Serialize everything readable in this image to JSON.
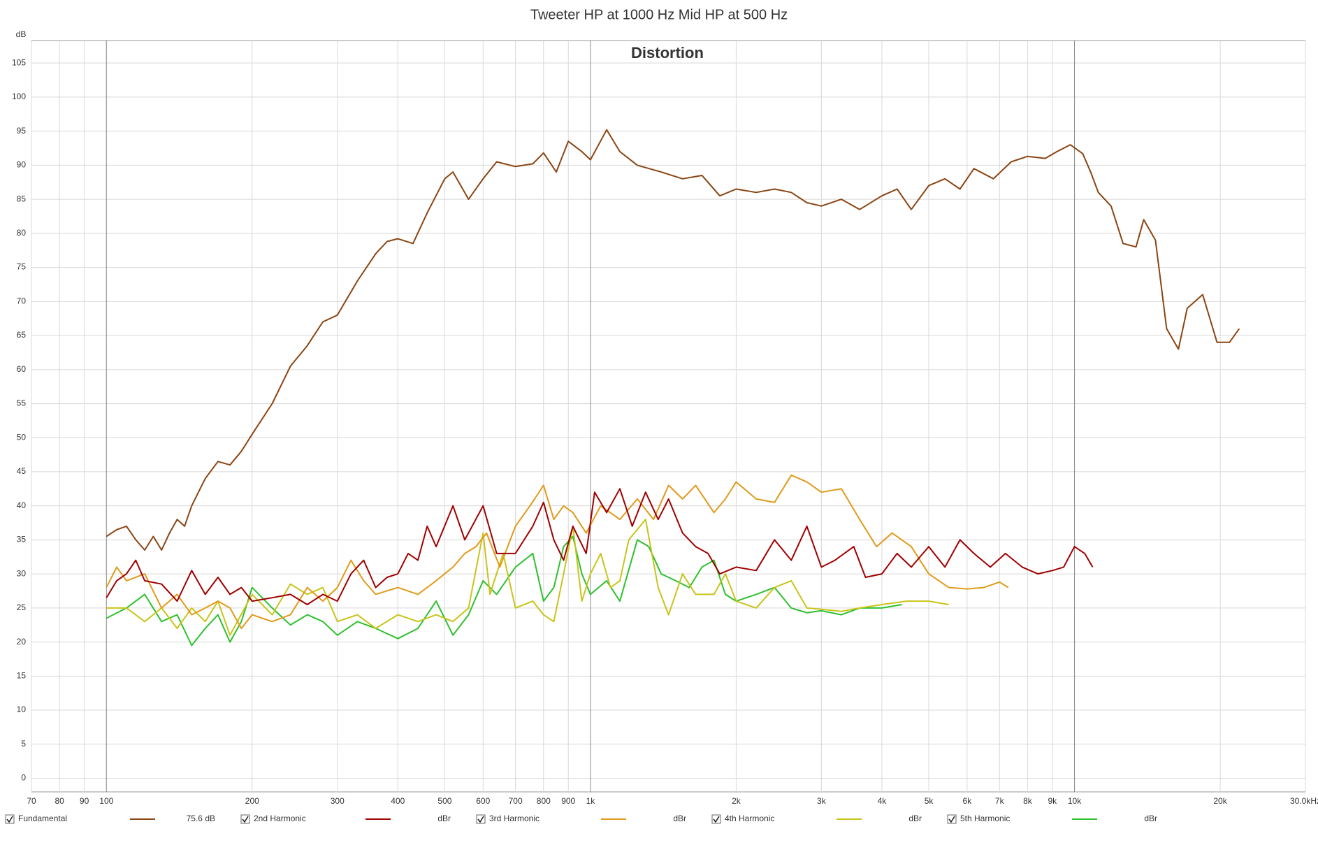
{
  "chart_data": {
    "type": "line",
    "title": "Tweeter HP at 1000 Hz Mid HP at 500 Hz",
    "subtitle": "Distortion",
    "y_axis_label": "dB",
    "x_scale": "log",
    "grid": true,
    "legend_position": "bottom",
    "xlim": [
      70,
      30000
    ],
    "ylim": [
      -2,
      108.3
    ],
    "xticks": [
      70,
      80,
      90,
      100,
      200,
      300,
      400,
      500,
      600,
      700,
      800,
      900,
      {
        "value": 1000,
        "label": "1k"
      },
      {
        "value": 2000,
        "label": "2k"
      },
      {
        "value": 3000,
        "label": "3k"
      },
      {
        "value": 4000,
        "label": "4k"
      },
      {
        "value": 5000,
        "label": "5k"
      },
      {
        "value": 6000,
        "label": "6k"
      },
      {
        "value": 7000,
        "label": "7k"
      },
      {
        "value": 8000,
        "label": "8k"
      },
      {
        "value": 9000,
        "label": "9k"
      },
      {
        "value": 10000,
        "label": "10k"
      },
      {
        "value": 20000,
        "label": "20k"
      },
      {
        "value": 30000,
        "label": "30.0kHz"
      }
    ],
    "yticks": [
      0,
      5,
      10,
      15,
      20,
      25,
      30,
      35,
      40,
      45,
      50,
      55,
      60,
      65,
      70,
      75,
      80,
      85,
      90,
      95,
      100,
      105
    ],
    "series": [
      {
        "name": "Fundamental",
        "legend_value": "75.6 dB",
        "color": "#8b4513",
        "x": [
          100,
          105,
          110,
          115,
          120,
          125,
          130,
          135,
          140,
          145,
          150,
          160,
          170,
          180,
          190,
          200,
          220,
          240,
          260,
          280,
          300,
          330,
          360,
          380,
          400,
          430,
          460,
          500,
          520,
          560,
          600,
          640,
          700,
          760,
          800,
          850,
          900,
          960,
          1000,
          1080,
          1150,
          1250,
          1400,
          1550,
          1700,
          1850,
          2000,
          2200,
          2400,
          2600,
          2800,
          3000,
          3300,
          3600,
          4000,
          4300,
          4600,
          5000,
          5400,
          5800,
          6200,
          6800,
          7400,
          8000,
          8700,
          9200,
          9800,
          10400,
          10800,
          11200,
          11900,
          12600,
          13400,
          13900,
          14700,
          15500,
          16400,
          17100,
          18400,
          19700,
          20900,
          21900
        ],
        "values": [
          35.5,
          36.5,
          37,
          35,
          33.5,
          35.5,
          33.5,
          36,
          38,
          37,
          40,
          44,
          46.5,
          46,
          48,
          50.5,
          55,
          60.5,
          63.5,
          67,
          68,
          73,
          77,
          78.8,
          79.2,
          78.5,
          83,
          88,
          89,
          85,
          88,
          90.5,
          89.8,
          90.2,
          91.8,
          89,
          93.5,
          92,
          90.8,
          95.2,
          92,
          90,
          89,
          88,
          88.5,
          85.5,
          86.5,
          86,
          86.5,
          86,
          84.5,
          84,
          85,
          83.5,
          85.5,
          86.5,
          83.5,
          87,
          88,
          86.5,
          89.5,
          88,
          90.5,
          91.3,
          91,
          92,
          93,
          91.7,
          89,
          86,
          84,
          78.5,
          78,
          82,
          79,
          66,
          63,
          69,
          71,
          64,
          64,
          66
        ]
      },
      {
        "name": "2nd Harmonic",
        "legend_value": "dBr",
        "color": "#a00000",
        "x": [
          100,
          105,
          110,
          115,
          120,
          130,
          140,
          150,
          160,
          170,
          180,
          190,
          200,
          220,
          240,
          260,
          280,
          300,
          320,
          340,
          360,
          380,
          400,
          420,
          440,
          460,
          480,
          520,
          550,
          600,
          640,
          700,
          760,
          800,
          840,
          880,
          920,
          980,
          1020,
          1080,
          1150,
          1220,
          1300,
          1380,
          1450,
          1550,
          1650,
          1750,
          1850,
          2000,
          2200,
          2400,
          2600,
          2800,
          3000,
          3200,
          3500,
          3700,
          4000,
          4300,
          4600,
          5000,
          5400,
          5800,
          6200,
          6700,
          7200,
          7800,
          8400,
          9000,
          9500,
          10000,
          10500,
          10900
        ],
        "values": [
          26.5,
          29,
          30,
          32,
          29,
          28.5,
          26,
          30.5,
          27,
          29.5,
          27,
          28,
          26,
          26.5,
          27,
          25.5,
          27,
          26,
          30,
          32,
          28,
          29.5,
          30,
          33,
          32,
          37,
          34,
          40,
          35,
          40,
          33,
          33,
          37,
          40.5,
          35,
          32,
          37,
          33,
          42,
          39,
          42.5,
          37,
          42,
          38,
          41,
          36,
          34,
          33,
          30,
          31,
          30.5,
          35,
          32,
          37,
          31,
          32,
          34,
          29.5,
          30,
          33,
          31,
          34,
          31,
          35,
          33,
          31,
          33,
          31,
          30,
          30.5,
          31,
          34,
          33,
          31
        ]
      },
      {
        "name": "3rd Harmonic",
        "legend_value": "dBr",
        "color": "#e09a1a",
        "x": [
          100,
          105,
          110,
          120,
          130,
          140,
          150,
          160,
          170,
          180,
          190,
          200,
          220,
          240,
          260,
          280,
          300,
          320,
          340,
          360,
          400,
          440,
          480,
          520,
          550,
          580,
          610,
          650,
          700,
          750,
          800,
          840,
          880,
          920,
          980,
          1050,
          1150,
          1250,
          1350,
          1450,
          1550,
          1650,
          1800,
          1900,
          2000,
          2200,
          2400,
          2600,
          2800,
          3000,
          3300,
          3600,
          3900,
          4200,
          4600,
          5000,
          5500,
          6000,
          6500,
          7000,
          7300
        ],
        "values": [
          28,
          31,
          29,
          30,
          25,
          27,
          24,
          25,
          26,
          25,
          22,
          24,
          23,
          24,
          28,
          26,
          28,
          32,
          29,
          27,
          28,
          27,
          29,
          31,
          33,
          34,
          36,
          31,
          37,
          40,
          43,
          38,
          40,
          39,
          36,
          40,
          38,
          41,
          38,
          43,
          41,
          43,
          39,
          41,
          43.5,
          41,
          40.5,
          44.5,
          43.5,
          42,
          42.5,
          38,
          34,
          36,
          34,
          30,
          28,
          27.8,
          28,
          28.8,
          28
        ]
      },
      {
        "name": "4th Harmonic",
        "legend_value": "dBr",
        "color": "#c8c41a",
        "x": [
          100,
          110,
          120,
          130,
          140,
          150,
          160,
          170,
          180,
          200,
          220,
          240,
          260,
          280,
          300,
          330,
          360,
          400,
          440,
          480,
          520,
          560,
          600,
          620,
          660,
          700,
          760,
          800,
          840,
          880,
          920,
          960,
          1000,
          1050,
          1100,
          1150,
          1200,
          1300,
          1380,
          1450,
          1550,
          1650,
          1800,
          1900,
          2000,
          2200,
          2400,
          2600,
          2800,
          3000,
          3300,
          3600,
          4000,
          4500,
          5000,
          5500
        ],
        "values": [
          25,
          25,
          23,
          25,
          22,
          25,
          23,
          26,
          21,
          27,
          24,
          28.5,
          27,
          28,
          23,
          24,
          22,
          24,
          23,
          24,
          23,
          25,
          36,
          27,
          33,
          25,
          26,
          24,
          23,
          30,
          37,
          26,
          30,
          33,
          28,
          29,
          35,
          38,
          28,
          24,
          30,
          27,
          27,
          30,
          26,
          25,
          28,
          29,
          25,
          24.8,
          24.5,
          25,
          25.5,
          26,
          26,
          25.5
        ]
      },
      {
        "name": "5th Harmonic",
        "legend_value": "dBr",
        "color": "#2ec02e",
        "x": [
          100,
          110,
          120,
          130,
          140,
          150,
          160,
          170,
          180,
          190,
          200,
          220,
          240,
          260,
          280,
          300,
          330,
          360,
          400,
          440,
          480,
          520,
          560,
          600,
          640,
          700,
          760,
          800,
          840,
          880,
          920,
          960,
          1000,
          1080,
          1150,
          1250,
          1320,
          1400,
          1500,
          1600,
          1700,
          1800,
          1900,
          2000,
          2200,
          2400,
          2600,
          2800,
          3000,
          3300,
          3600,
          4000,
          4400
        ],
        "values": [
          23.5,
          25,
          27,
          23,
          24,
          19.5,
          22,
          24,
          20,
          23,
          28,
          25,
          22.5,
          24,
          23,
          21,
          23,
          22,
          20.5,
          22,
          26,
          21,
          24,
          29,
          27,
          31,
          33,
          26,
          28,
          34,
          35.5,
          30,
          27,
          29,
          26,
          35,
          34,
          30,
          29,
          28,
          31,
          32,
          27,
          26,
          27,
          28,
          25,
          24.3,
          24.6,
          24,
          25,
          25,
          25.5
        ]
      }
    ]
  }
}
